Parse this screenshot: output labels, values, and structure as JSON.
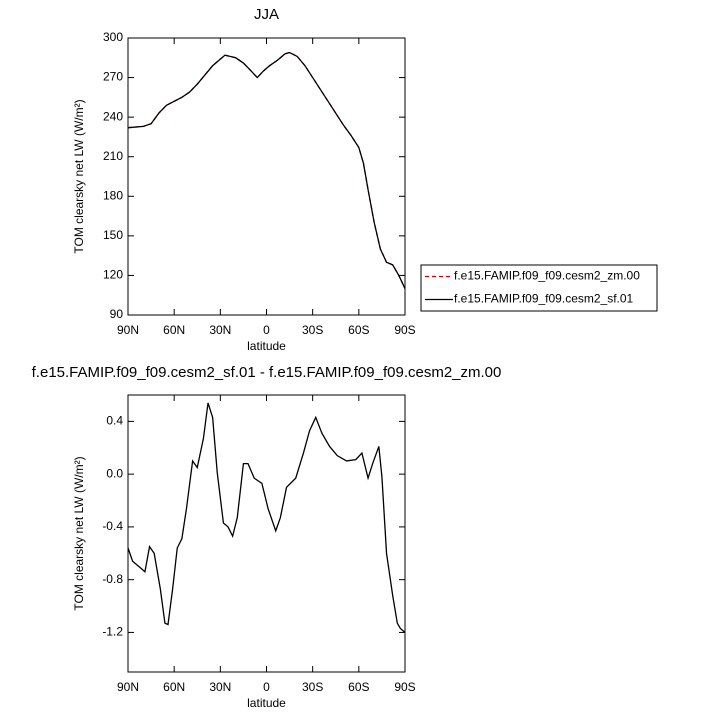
{
  "chart_data": [
    {
      "type": "line",
      "title": "JJA",
      "xlabel": "latitude",
      "ylabel": "TOM clearsky net LW (W/m²)",
      "x": [
        90,
        80,
        75,
        70,
        65,
        60,
        55,
        50,
        45,
        40,
        35,
        30,
        27,
        20,
        15,
        10,
        6,
        2,
        -2,
        -7,
        -12,
        -15,
        -20,
        -25,
        -30,
        -35,
        -40,
        -45,
        -50,
        -55,
        -60,
        -63,
        -66,
        -70,
        -74,
        -78,
        -82,
        -86,
        -90
      ],
      "xlim": [
        90,
        -90
      ],
      "xticks": [
        {
          "value": 90,
          "label": "90N"
        },
        {
          "value": 60,
          "label": "60N"
        },
        {
          "value": 30,
          "label": "30N"
        },
        0,
        {
          "value": -30,
          "label": "30S"
        },
        {
          "value": -60,
          "label": "60S"
        },
        {
          "value": -90,
          "label": "90S"
        }
      ],
      "ylim": [
        90,
        300
      ],
      "yticks": [
        90,
        120,
        150,
        180,
        210,
        240,
        270,
        300
      ],
      "legend": "right",
      "series": [
        {
          "name": "f.e15.FAMIP.f09_f09.cesm2_zm.00",
          "color": "#cc0000",
          "style": "dashed",
          "values": [
            232,
            233,
            235,
            243,
            249,
            252,
            255,
            259,
            265,
            272,
            279,
            284,
            287,
            285,
            281,
            275,
            270,
            275,
            279,
            283,
            288,
            289,
            286,
            279,
            270,
            261,
            252,
            243,
            234,
            226,
            217,
            205,
            185,
            160,
            140,
            130,
            128,
            120,
            110
          ]
        },
        {
          "name": "f.e15.FAMIP.f09_f09.cesm2_sf.01",
          "color": "#000000",
          "style": "solid",
          "values": [
            232,
            233,
            235,
            243,
            249,
            252,
            255,
            259,
            265,
            272,
            279,
            284,
            287,
            285,
            281,
            275,
            270,
            275,
            279,
            283,
            288,
            289,
            286,
            279,
            270,
            261,
            252,
            243,
            234,
            226,
            217,
            205,
            185,
            160,
            140,
            130,
            128,
            120,
            110
          ]
        }
      ]
    },
    {
      "type": "line",
      "title": "f.e15.FAMIP.f09_f09.cesm2_sf.01 - f.e15.FAMIP.f09_f09.cesm2_zm.00",
      "xlabel": "latitude",
      "ylabel": "TOM clearsky net LW (W/m²)",
      "x": [
        90,
        87,
        82,
        79,
        76,
        73,
        69,
        66,
        64,
        61,
        58,
        55,
        52,
        48,
        45,
        41,
        38,
        35,
        32,
        28,
        25,
        22,
        19,
        15,
        12,
        8,
        3,
        -1,
        -6,
        -9,
        -13,
        -19,
        -24,
        -28,
        -32,
        -36,
        -41,
        -46,
        -52,
        -58,
        -62,
        -66,
        -69,
        -73,
        -75,
        -78,
        -82,
        -85,
        -87,
        -90
      ],
      "xlim": [
        90,
        -90
      ],
      "xticks": [
        {
          "value": 90,
          "label": "90N"
        },
        {
          "value": 60,
          "label": "60N"
        },
        {
          "value": 30,
          "label": "30N"
        },
        0,
        {
          "value": -30,
          "label": "30S"
        },
        {
          "value": -60,
          "label": "60S"
        },
        {
          "value": -90,
          "label": "90S"
        }
      ],
      "ylim": [
        -1.5,
        0.6
      ],
      "yticks": [
        -1.2,
        -0.8,
        -0.4,
        {
          "value": 0,
          "label": "0.0"
        },
        0.4
      ],
      "series": [
        {
          "color": "#000000",
          "style": "solid",
          "values": [
            -0.56,
            -0.66,
            -0.71,
            -0.74,
            -0.55,
            -0.6,
            -0.87,
            -1.13,
            -1.14,
            -0.87,
            -0.56,
            -0.49,
            -0.26,
            0.1,
            0.05,
            0.27,
            0.54,
            0.43,
            0.01,
            -0.37,
            -0.4,
            -0.47,
            -0.33,
            0.08,
            0.08,
            -0.03,
            -0.07,
            -0.26,
            -0.43,
            -0.33,
            -0.1,
            -0.03,
            0.16,
            0.33,
            0.43,
            0.31,
            0.21,
            0.14,
            0.1,
            0.11,
            0.16,
            -0.03,
            0.08,
            0.21,
            -0.02,
            -0.6,
            -0.92,
            -1.13,
            -1.17,
            -1.2
          ]
        }
      ]
    }
  ]
}
